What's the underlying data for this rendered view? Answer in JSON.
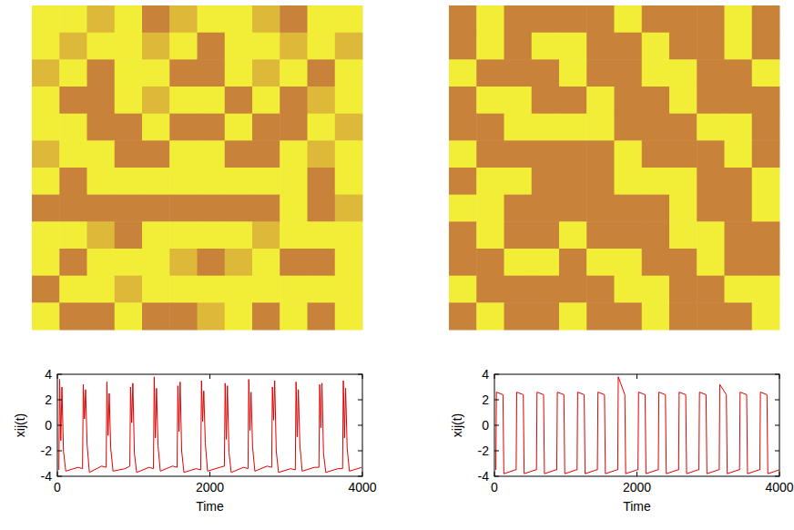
{
  "chart_data": [
    {
      "type": "heatmap",
      "tick_labels": false,
      "cells": [
        [
          1,
          1,
          0.5,
          1,
          0,
          0.5,
          1,
          1,
          0.5,
          0,
          1,
          1
        ],
        [
          1,
          0.5,
          1,
          1,
          0.5,
          1,
          0,
          1,
          1,
          0.5,
          1,
          0.5
        ],
        [
          0.5,
          1,
          0,
          1,
          1,
          0,
          0,
          1,
          0.5,
          1,
          0,
          1
        ],
        [
          1,
          0,
          0,
          1,
          0.5,
          1,
          1,
          0,
          1,
          0,
          0.5,
          1
        ],
        [
          1,
          1,
          0,
          0,
          1,
          0,
          0,
          1,
          0,
          0,
          1,
          0.5
        ],
        [
          0.5,
          1,
          1,
          0,
          0,
          1,
          1,
          0,
          0,
          1,
          0.5,
          1
        ],
        [
          1,
          0,
          1,
          1,
          1,
          1,
          1,
          1,
          1,
          1,
          0,
          1
        ],
        [
          0,
          0,
          0,
          0,
          0,
          0,
          0,
          0,
          0,
          1,
          0,
          0.5
        ],
        [
          1,
          1,
          0.5,
          0,
          1,
          1,
          1,
          1,
          0.5,
          1,
          1,
          1
        ],
        [
          1,
          0,
          1,
          1,
          1,
          0.5,
          0,
          0.5,
          1,
          0,
          0,
          1
        ],
        [
          0,
          1,
          1,
          0.5,
          1,
          1,
          1,
          1,
          1,
          1,
          1,
          1
        ],
        [
          1,
          0,
          0,
          1,
          0,
          0,
          0.5,
          1,
          0,
          1,
          0,
          1
        ]
      ]
    },
    {
      "type": "heatmap",
      "tick_labels": false,
      "cells": [
        [
          0,
          1,
          0,
          0,
          0,
          0,
          1,
          0,
          0,
          0,
          1,
          0
        ],
        [
          0,
          1,
          0,
          1,
          1,
          0,
          0,
          1,
          0,
          0,
          1,
          0
        ],
        [
          1,
          0,
          0,
          0,
          1,
          0,
          0,
          1,
          1,
          0,
          0,
          1
        ],
        [
          0,
          1,
          1,
          0,
          0,
          1,
          0,
          0,
          1,
          0,
          0,
          0
        ],
        [
          0,
          0,
          1,
          1,
          1,
          1,
          0,
          0,
          0,
          1,
          1,
          0
        ],
        [
          1,
          0,
          0,
          0,
          0,
          0,
          1,
          0,
          0,
          0,
          1,
          0
        ],
        [
          0,
          1,
          1,
          0,
          0,
          0,
          1,
          1,
          1,
          0,
          0,
          1
        ],
        [
          1,
          1,
          0,
          0,
          0,
          0,
          0,
          0,
          1,
          0,
          0,
          1
        ],
        [
          0,
          1,
          0,
          0,
          1,
          0,
          0,
          0,
          1,
          1,
          0,
          0
        ],
        [
          0,
          0,
          1,
          1,
          0,
          1,
          1,
          0,
          0,
          1,
          0,
          0
        ],
        [
          1,
          0,
          0,
          0,
          0,
          0,
          1,
          1,
          0,
          0,
          1,
          1
        ],
        [
          0,
          1,
          0,
          0,
          1,
          0,
          0,
          1,
          0,
          0,
          0,
          1
        ]
      ]
    },
    {
      "type": "line",
      "xlabel": "Time",
      "ylabel": "xij(t)",
      "xlim": [
        0,
        4000
      ],
      "xticks": [
        0,
        2000,
        4000
      ],
      "ylim": [
        -4,
        4
      ],
      "yticks": [
        -4,
        -2,
        0,
        2,
        4
      ],
      "series": [
        {
          "color": "#e00000",
          "x": [
            20,
            30,
            45,
            60,
            80,
            110,
            270,
            330,
            340,
            355,
            370,
            390,
            420,
            580,
            640,
            650,
            665,
            680,
            700,
            730,
            890,
            950,
            960,
            975,
            990,
            1010,
            1040,
            1200,
            1260,
            1270,
            1285,
            1300,
            1320,
            1350,
            1510,
            1570,
            1580,
            1595,
            1610,
            1630,
            1660,
            1820,
            1880,
            1890,
            1905,
            1920,
            1940,
            1970,
            2130,
            2190,
            2200,
            2215,
            2230,
            2250,
            2280,
            2440,
            2500,
            2510,
            2525,
            2540,
            2560,
            2590,
            2750,
            2810,
            2820,
            2835,
            2850,
            2870,
            2900,
            3060,
            3120,
            3130,
            3145,
            3160,
            3180,
            3210,
            3370,
            3430,
            3440,
            3455,
            3470,
            3490,
            3520,
            3680,
            3740,
            3750,
            3765,
            3780,
            3800,
            3830,
            3990
          ],
          "values": [
            -3.5,
            3.6,
            -1.2,
            3.0,
            -2.0,
            -3.6,
            -3.3,
            -3.4,
            3.2,
            0.5,
            2.8,
            -1.5,
            -3.7,
            -3.2,
            -3.3,
            3.4,
            -0.8,
            2.5,
            -1.8,
            -3.6,
            -3.4,
            -3.2,
            3.0,
            0.2,
            3.3,
            -2.2,
            -3.7,
            -3.3,
            -3.4,
            3.8,
            -1.0,
            2.9,
            -1.6,
            -3.6,
            -3.2,
            -3.3,
            3.1,
            -0.5,
            3.4,
            -2.0,
            -3.7,
            -3.4,
            -3.5,
            3.5,
            0.3,
            2.7,
            -1.4,
            -3.6,
            -3.3,
            -3.2,
            3.3,
            -1.1,
            3.1,
            -2.1,
            -3.7,
            -3.3,
            -3.4,
            3.6,
            -0.4,
            2.6,
            -1.7,
            -3.6,
            -3.2,
            -3.3,
            3.0,
            0.4,
            3.5,
            -2.0,
            -3.7,
            -3.4,
            -3.5,
            3.4,
            -0.9,
            2.8,
            -1.5,
            -3.6,
            -3.3,
            -3.3,
            3.2,
            -0.2,
            3.3,
            -2.2,
            -3.7,
            -3.4,
            -3.4,
            3.5,
            -1.0,
            2.9,
            -1.8,
            -3.6,
            -3.3
          ]
        }
      ]
    },
    {
      "type": "line",
      "xlabel": "Time",
      "ylabel": "xij(t)",
      "xlim": [
        0,
        4000
      ],
      "xticks": [
        0,
        2000,
        4000
      ],
      "ylim": [
        -4,
        4
      ],
      "yticks": [
        -4,
        -2,
        0,
        2,
        4
      ],
      "series": [
        {
          "color": "#e00000",
          "x": [
            20,
            28,
            120,
            132,
            290,
            305,
            313,
            405,
            417,
            575,
            590,
            598,
            690,
            702,
            860,
            875,
            883,
            975,
            987,
            1145,
            1160,
            1168,
            1260,
            1272,
            1430,
            1445,
            1453,
            1545,
            1557,
            1715,
            1730,
            1738,
            1830,
            1842,
            2000,
            2015,
            2023,
            2115,
            2127,
            2285,
            2300,
            2308,
            2400,
            2412,
            2570,
            2585,
            2593,
            2685,
            2697,
            2855,
            2870,
            2878,
            2970,
            2982,
            3140,
            3155,
            3163,
            3255,
            3267,
            3425,
            3440,
            3448,
            3540,
            3552,
            3710,
            3725,
            3733,
            3825,
            3837,
            3995
          ],
          "values": [
            -3.5,
            2.6,
            2.4,
            -3.8,
            -3.5,
            -3.5,
            2.6,
            2.4,
            -3.8,
            -3.5,
            -3.5,
            2.6,
            2.4,
            -3.8,
            -3.5,
            -3.5,
            2.6,
            2.4,
            -3.8,
            -3.5,
            -3.5,
            2.6,
            2.4,
            -3.8,
            -3.5,
            -3.5,
            2.6,
            2.4,
            -3.8,
            -3.5,
            -3.5,
            3.8,
            2.4,
            -3.8,
            -3.5,
            -3.5,
            2.6,
            2.4,
            -3.8,
            -3.5,
            -3.5,
            2.6,
            2.4,
            -3.8,
            -3.5,
            -3.5,
            2.6,
            2.4,
            -3.8,
            -3.5,
            -3.5,
            2.6,
            2.4,
            -3.8,
            -3.5,
            -3.5,
            3.2,
            2.4,
            -3.8,
            -3.5,
            -3.5,
            2.6,
            2.4,
            -3.8,
            -3.5,
            -3.5,
            2.6,
            2.4,
            -3.8,
            -3.5
          ]
        }
      ]
    }
  ]
}
